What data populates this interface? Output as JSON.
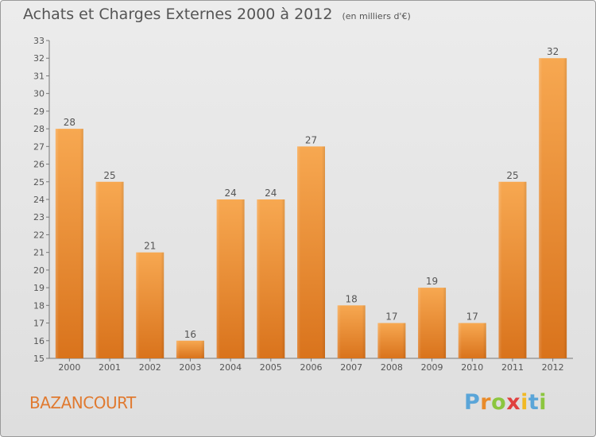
{
  "title": "Achats et Charges Externes 2000 à 2012",
  "unit": "(en milliers d'€)",
  "commune": "BAZANCOURT",
  "logo": {
    "p": "P",
    "r": "r",
    "o": "o",
    "x": "x",
    "i1": "i",
    "t": "t",
    "i2": "i"
  },
  "colors": {
    "bar_light": "#f6a44e",
    "bar_dark": "#d9731c",
    "text": "#555555",
    "commune": "#e07a30"
  },
  "chart_data": {
    "type": "bar",
    "categories": [
      "2000",
      "2001",
      "2002",
      "2003",
      "2004",
      "2005",
      "2006",
      "2007",
      "2008",
      "2009",
      "2010",
      "2011",
      "2012"
    ],
    "values": [
      28,
      25,
      21,
      16,
      24,
      24,
      27,
      18,
      17,
      19,
      17,
      25,
      32
    ],
    "ylim": [
      15,
      33
    ],
    "yticks": [
      15,
      16,
      17,
      18,
      19,
      20,
      21,
      22,
      23,
      24,
      25,
      26,
      27,
      28,
      29,
      30,
      31,
      32,
      33
    ],
    "grid": false
  }
}
